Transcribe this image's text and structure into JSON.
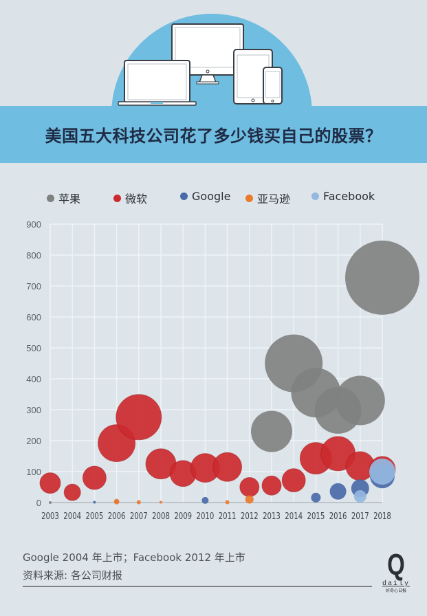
{
  "header": {
    "title": "美国五大科技公司花了多少钱买自己的股票？",
    "illustration": [
      "laptop-icon",
      "desktop-monitor-icon",
      "tablet-icon",
      "phone-icon"
    ]
  },
  "legend": {
    "items": [
      {
        "label": "苹果",
        "color": "#7f8080"
      },
      {
        "label": "微软",
        "color": "#cc2a2e"
      },
      {
        "label": "Google",
        "color": "#4a6aa8"
      },
      {
        "label": "亚马逊",
        "color": "#ea7a2c"
      },
      {
        "label": "Facebook",
        "color": "#94b8e0"
      }
    ]
  },
  "footer": {
    "note": "Google 2004 年上市；Facebook 2012 年上市",
    "source": "资料来源: 各公司财报"
  },
  "logo": {
    "mark": "Q",
    "word": "daily",
    "cn": "好奇心日报"
  },
  "chart_data": {
    "type": "scatter",
    "subtype": "bubble",
    "title": "美国五大科技公司花了多少钱买自己的股票？",
    "xlabel": "",
    "ylabel": "",
    "ylim": [
      0,
      900
    ],
    "yticks": [
      0,
      100,
      200,
      300,
      400,
      500,
      600,
      700,
      800,
      900
    ],
    "categories": [
      "2003",
      "2004",
      "2005",
      "2006",
      "2007",
      "2008",
      "2009",
      "2010",
      "2011",
      "2012",
      "2013",
      "2014",
      "2015",
      "2016",
      "2017",
      "2018"
    ],
    "grid": true,
    "legend_position": "top",
    "series": [
      {
        "name": "苹果",
        "color": "#7f8080",
        "values": [
          0,
          null,
          null,
          3,
          null,
          null,
          null,
          null,
          null,
          null,
          230,
          450,
          355,
          298,
          330,
          727
        ],
        "radii": [
          2,
          null,
          null,
          3,
          null,
          null,
          null,
          null,
          null,
          null,
          30,
          42,
          36,
          34,
          36,
          54
        ]
      },
      {
        "name": "微软",
        "color": "#cc2a2e",
        "values": [
          63,
          33,
          80,
          192,
          276,
          125,
          94,
          112,
          115,
          50,
          55,
          72,
          143,
          158,
          118,
          107
        ],
        "radii": [
          15,
          12,
          17,
          27,
          33,
          22,
          19,
          21,
          21,
          14,
          14,
          17,
          23,
          25,
          21,
          19
        ]
      },
      {
        "name": "Google",
        "color": "#4a6aa8",
        "values": [
          null,
          null,
          1,
          null,
          null,
          null,
          null,
          7,
          null,
          null,
          null,
          null,
          16,
          36,
          46,
          86
        ],
        "radii": [
          null,
          null,
          2,
          null,
          null,
          null,
          null,
          5,
          null,
          null,
          null,
          null,
          7,
          12,
          13,
          18
        ]
      },
      {
        "name": "亚马逊",
        "color": "#ea7a2c",
        "values": [
          null,
          null,
          null,
          3,
          1,
          1,
          null,
          null,
          1,
          10,
          null,
          null,
          null,
          null,
          null,
          null
        ],
        "radii": [
          null,
          null,
          null,
          4,
          3,
          2,
          null,
          null,
          3,
          6,
          null,
          null,
          null,
          null,
          null,
          null
        ]
      },
      {
        "name": "Facebook",
        "color": "#94b8e0",
        "values": [
          null,
          null,
          null,
          null,
          null,
          null,
          null,
          null,
          null,
          null,
          null,
          null,
          null,
          null,
          20,
          100
        ],
        "radii": [
          null,
          null,
          null,
          null,
          null,
          null,
          null,
          null,
          null,
          null,
          null,
          null,
          null,
          null,
          9,
          19
        ]
      }
    ],
    "annotations": [
      "Google 2004 年上市；Facebook 2012 年上市",
      "资料来源: 各公司财报"
    ]
  }
}
